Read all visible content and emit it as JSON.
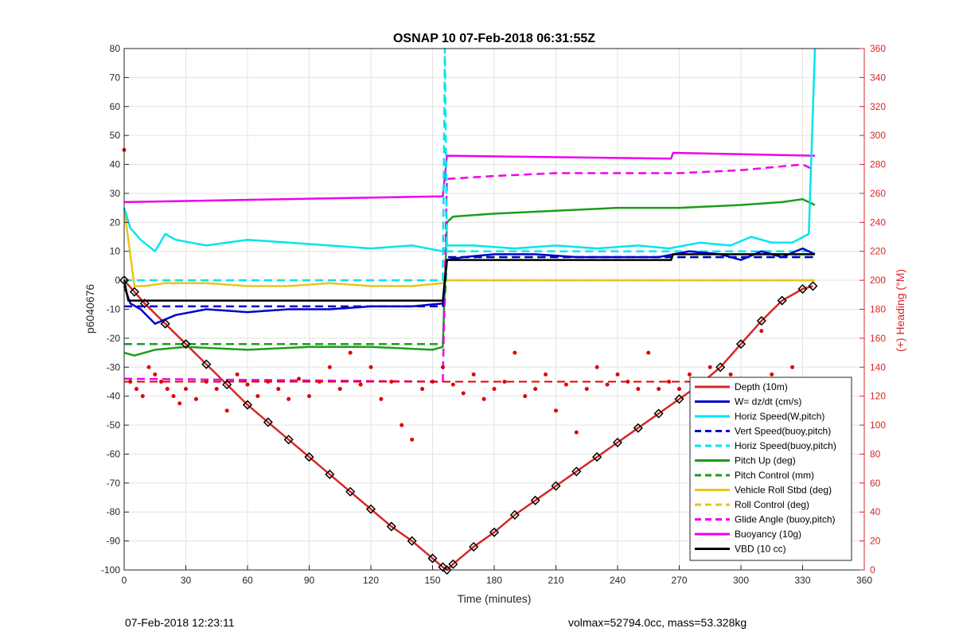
{
  "footer": {
    "left": "07-Feb-2018 12:23:11",
    "right": "volmax=52794.0cc, mass=53.328kg"
  },
  "chart_data": {
    "type": "line",
    "title": "OSNAP 10 07-Feb-2018 06:31:55Z",
    "xlabel": "Time (minutes)",
    "ylabel": "p6040676",
    "ylabel_right": "(+) Heading (°M)",
    "xlim": [
      0,
      360
    ],
    "ylim": [
      -100,
      80
    ],
    "ylim_right": [
      0,
      360
    ],
    "xticks": [
      0,
      30,
      60,
      90,
      120,
      150,
      180,
      210,
      240,
      270,
      300,
      330,
      360
    ],
    "yticks": [
      -100,
      -90,
      -80,
      -70,
      -60,
      -50,
      -40,
      -30,
      -20,
      -10,
      0,
      10,
      20,
      30,
      40,
      50,
      60,
      70,
      80
    ],
    "yticks_right": [
      0,
      20,
      40,
      60,
      80,
      100,
      120,
      140,
      160,
      180,
      200,
      220,
      240,
      260,
      280,
      300,
      320,
      340,
      360
    ],
    "grid": true,
    "legend_position": "bottom-right",
    "series": [
      {
        "name": "Depth (10m)",
        "color": "#d62728",
        "style": "solid",
        "x": [
          0,
          5,
          10,
          20,
          30,
          40,
          50,
          60,
          70,
          80,
          90,
          100,
          110,
          120,
          130,
          140,
          150,
          155,
          157,
          160,
          170,
          180,
          190,
          200,
          210,
          220,
          230,
          240,
          250,
          260,
          270,
          280,
          290,
          300,
          310,
          320,
          330,
          335
        ],
        "values": [
          0,
          -4,
          -8,
          -15,
          -22,
          -29,
          -36,
          -43,
          -49,
          -55,
          -61,
          -67,
          -73,
          -79,
          -85,
          -90,
          -96,
          -99,
          -100,
          -98,
          -92,
          -87,
          -81,
          -76,
          -71,
          -66,
          -61,
          -56,
          -51,
          -46,
          -41,
          -36,
          -30,
          -22,
          -14,
          -7,
          -3,
          -2
        ]
      },
      {
        "name": "W= dz/dt (cm/s)",
        "color": "#0000cd",
        "style": "solid",
        "x": [
          0,
          3,
          8,
          15,
          25,
          40,
          60,
          80,
          100,
          120,
          140,
          155,
          157,
          165,
          180,
          200,
          220,
          240,
          260,
          275,
          290,
          300,
          310,
          320,
          330,
          336
        ],
        "values": [
          -2,
          -8,
          -10,
          -15,
          -12,
          -10,
          -11,
          -10,
          -10,
          -9,
          -9,
          -8,
          7,
          8,
          9,
          9,
          8,
          8,
          8,
          10,
          9,
          7,
          10,
          8,
          11,
          9
        ]
      },
      {
        "name": "Horiz Speed(W,pitch)",
        "color": "#00e5ee",
        "style": "solid",
        "x": [
          0,
          3,
          8,
          15,
          20,
          25,
          40,
          60,
          80,
          100,
          120,
          140,
          155,
          157,
          170,
          190,
          210,
          230,
          250,
          265,
          280,
          295,
          305,
          315,
          325,
          333,
          336
        ],
        "values": [
          25,
          18,
          14,
          10,
          16,
          14,
          12,
          14,
          13,
          12,
          11,
          12,
          10,
          12,
          12,
          11,
          12,
          11,
          12,
          11,
          13,
          12,
          15,
          13,
          13,
          16,
          80
        ]
      },
      {
        "name": "Vert Speed(buoy,pitch)",
        "color": "#0000cd",
        "style": "dashed",
        "x": [
          0,
          155,
          157,
          336
        ],
        "values": [
          -9,
          -9,
          8,
          8
        ]
      },
      {
        "name": "Horiz Speed(buoy,pitch)",
        "color": "#00e5ee",
        "style": "dashed",
        "x": [
          0,
          155,
          156,
          157,
          336
        ],
        "values": [
          0,
          0,
          80,
          10,
          10
        ]
      },
      {
        "name": "Pitch Up (deg)",
        "color": "#1a9e1a",
        "style": "solid",
        "x": [
          0,
          5,
          15,
          30,
          60,
          90,
          120,
          150,
          155,
          157,
          160,
          180,
          210,
          240,
          270,
          300,
          320,
          330,
          336
        ],
        "values": [
          -25,
          -26,
          -24,
          -23,
          -24,
          -23,
          -23,
          -24,
          -23,
          20,
          22,
          23,
          24,
          25,
          25,
          26,
          27,
          28,
          26
        ]
      },
      {
        "name": "Pitch Control (mm)",
        "color": "#1a9e1a",
        "style": "dashed",
        "x": [
          0,
          155,
          157,
          336
        ],
        "values": [
          -22,
          -22,
          8,
          8
        ]
      },
      {
        "name": "Vehicle Roll Stbd (deg)",
        "color": "#e6c619",
        "style": "solid",
        "x": [
          0,
          5,
          10,
          20,
          40,
          60,
          80,
          100,
          120,
          140,
          155,
          157,
          170,
          190,
          210,
          230,
          250,
          270,
          290,
          310,
          330,
          336
        ],
        "values": [
          25,
          -2,
          -2,
          -1,
          -1,
          -2,
          -2,
          -1,
          -2,
          -2,
          -1,
          0,
          0,
          0,
          0,
          0,
          0,
          0,
          0,
          0,
          0,
          0
        ]
      },
      {
        "name": "Roll Control (deg)",
        "color": "#e6c619",
        "style": "dashed",
        "x": [
          0,
          155,
          157,
          336
        ],
        "values": [
          0,
          0,
          0,
          0
        ]
      },
      {
        "name": "Glide Angle (buoy,pitch)",
        "color": "#ee00ee",
        "style": "dashed",
        "x": [
          0,
          155,
          157,
          180,
          210,
          240,
          265,
          270,
          300,
          330,
          336
        ],
        "values": [
          -34,
          -35,
          35,
          36,
          37,
          37,
          37,
          37,
          38,
          40,
          38
        ]
      },
      {
        "name": "Buoyancy (10g)",
        "color": "#ee00ee",
        "style": "solid",
        "x": [
          0,
          155,
          157,
          266,
          267,
          336
        ],
        "values": [
          27,
          29,
          43,
          42,
          44,
          43
        ]
      },
      {
        "name": "VBD (10 cc)",
        "color": "#000000",
        "style": "solid",
        "x": [
          0,
          2,
          155,
          157,
          266,
          267,
          336
        ],
        "values": [
          0,
          -7,
          -7,
          7,
          7,
          9,
          9
        ]
      }
    ],
    "heading_scatter": {
      "name": "Heading",
      "color": "#e00000",
      "axis": "right",
      "x": [
        0,
        3,
        6,
        9,
        12,
        15,
        18,
        21,
        24,
        27,
        30,
        35,
        40,
        45,
        50,
        55,
        60,
        65,
        70,
        75,
        80,
        85,
        90,
        95,
        100,
        105,
        110,
        115,
        120,
        125,
        130,
        135,
        140,
        145,
        150,
        155,
        160,
        165,
        170,
        175,
        180,
        185,
        190,
        195,
        200,
        205,
        210,
        215,
        220,
        225,
        230,
        235,
        240,
        245,
        250,
        255,
        260,
        265,
        270,
        275,
        280,
        285,
        290,
        295,
        300,
        305,
        310,
        315,
        320,
        325,
        330,
        335
      ],
      "values": [
        290,
        130,
        125,
        120,
        140,
        135,
        130,
        125,
        120,
        115,
        125,
        118,
        130,
        125,
        110,
        135,
        128,
        120,
        130,
        125,
        118,
        132,
        120,
        130,
        140,
        125,
        150,
        128,
        140,
        118,
        130,
        100,
        90,
        125,
        130,
        140,
        128,
        122,
        135,
        118,
        125,
        130,
        150,
        120,
        125,
        135,
        110,
        128,
        95,
        125,
        140,
        128,
        135,
        130,
        125,
        150,
        125,
        130,
        125,
        135,
        128,
        140,
        130,
        135,
        125,
        130,
        165,
        135,
        120,
        140,
        130,
        125
      ]
    },
    "heading_dashed": {
      "color": "#e00000",
      "style": "dashed",
      "x": [
        0,
        336
      ],
      "values": [
        130,
        130
      ]
    }
  }
}
